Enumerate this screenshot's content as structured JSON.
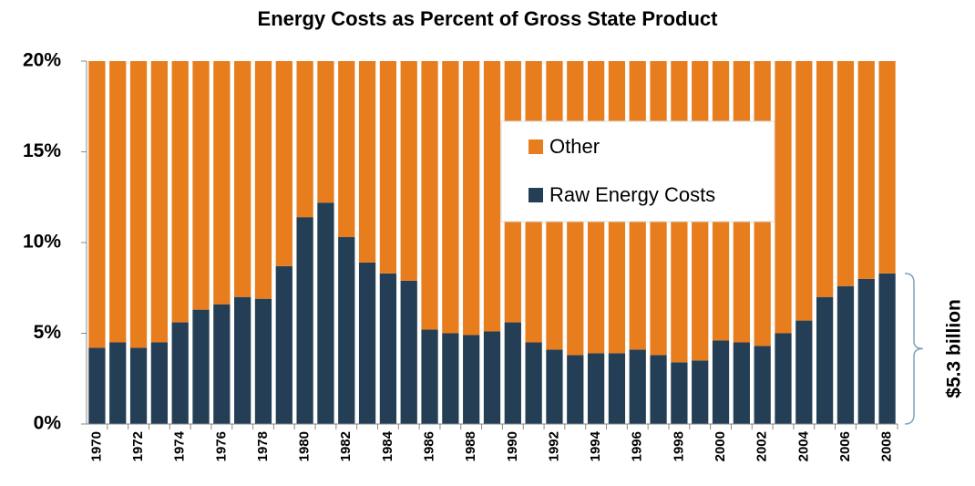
{
  "chart_data": {
    "type": "stacked_bar",
    "title": "Energy Costs as Percent of Gross State Product",
    "categories": [
      "1970",
      null,
      "1972",
      null,
      "1974",
      null,
      "1976",
      null,
      "1978",
      null,
      "1980",
      null,
      "1982",
      null,
      "1984",
      null,
      "1986",
      null,
      "1988",
      null,
      "1990",
      null,
      "1992",
      null,
      "1994",
      null,
      "1996",
      null,
      "1998",
      null,
      "2000",
      null,
      "2002",
      null,
      "2004",
      null,
      "2006",
      null,
      "2008"
    ],
    "series": [
      {
        "name": "Raw Energy Costs",
        "color": "#243f55",
        "values": [
          4.2,
          4.5,
          4.2,
          4.5,
          5.6,
          6.3,
          6.6,
          7.0,
          6.9,
          8.7,
          11.4,
          12.2,
          10.3,
          8.9,
          8.3,
          7.9,
          5.2,
          5.0,
          4.9,
          5.1,
          5.6,
          4.5,
          4.1,
          3.8,
          3.9,
          3.9,
          4.1,
          3.8,
          3.4,
          3.5,
          4.6,
          4.5,
          4.3,
          5.0,
          5.7,
          7.0,
          7.6,
          8.0,
          8.3
        ]
      },
      {
        "name": "Other",
        "color": "#e87d1e",
        "values": [
          15.8,
          15.5,
          15.8,
          15.5,
          14.4,
          13.7,
          13.4,
          13.0,
          13.1,
          11.3,
          8.6,
          7.8,
          9.7,
          11.1,
          11.7,
          12.1,
          14.8,
          15.0,
          15.1,
          14.9,
          14.4,
          15.5,
          15.9,
          16.2,
          16.1,
          16.1,
          15.9,
          16.2,
          16.6,
          16.5,
          15.4,
          15.5,
          15.7,
          15.0,
          14.3,
          13.0,
          12.4,
          12.0,
          11.7
        ]
      }
    ],
    "ylim": [
      0,
      20
    ],
    "yticks": [
      {
        "value": 0,
        "label": "0%"
      },
      {
        "value": 5,
        "label": "5%"
      },
      {
        "value": 10,
        "label": "10%"
      },
      {
        "value": 15,
        "label": "15%"
      },
      {
        "value": 20,
        "label": "20%"
      }
    ],
    "annotation": "$5.3 billion"
  }
}
